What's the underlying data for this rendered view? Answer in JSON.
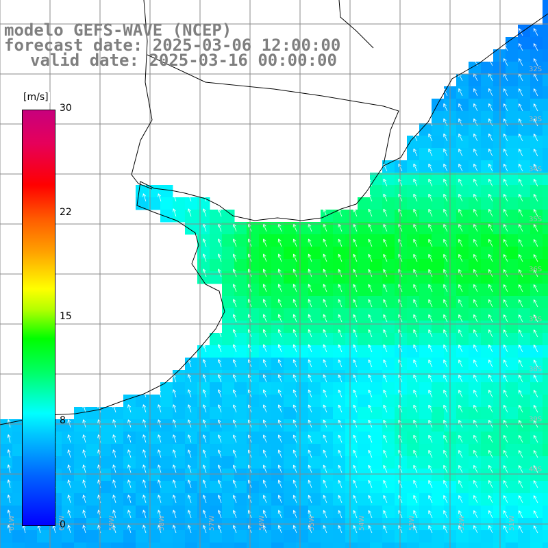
{
  "title": {
    "model_line": "modelo GEFS-WAVE (NCEP)",
    "forecast_line": "forecast date: 2025-03-06 12:00:00",
    "valid_line": "valid date: 2025-03-16 00:00:00"
  },
  "colorbar": {
    "unit": "[m/s]",
    "min": 0,
    "max": 30,
    "ticks": [
      "30",
      "22",
      "15",
      "8",
      "0"
    ],
    "tick_values": [
      30,
      22,
      15,
      8,
      0
    ]
  },
  "map": {
    "lat_labels": [
      "32S",
      "33S",
      "34S",
      "35S",
      "36S",
      "37S",
      "38S",
      "39S",
      "40S"
    ],
    "lon_labels": [
      "61W",
      "60W",
      "59W",
      "58W",
      "57W",
      "56W",
      "55W",
      "54W",
      "53W",
      "52W",
      "51W"
    ],
    "lon_range": [
      -61,
      -51
    ],
    "lat_range": [
      -41,
      -30
    ],
    "field": "wind speed with direction arrows",
    "ocean_colors_hint": [
      "#00ff00",
      "#00ff64",
      "#00ffc8",
      "#00e6ff",
      "#00b4ff",
      "#0082ff"
    ]
  }
}
